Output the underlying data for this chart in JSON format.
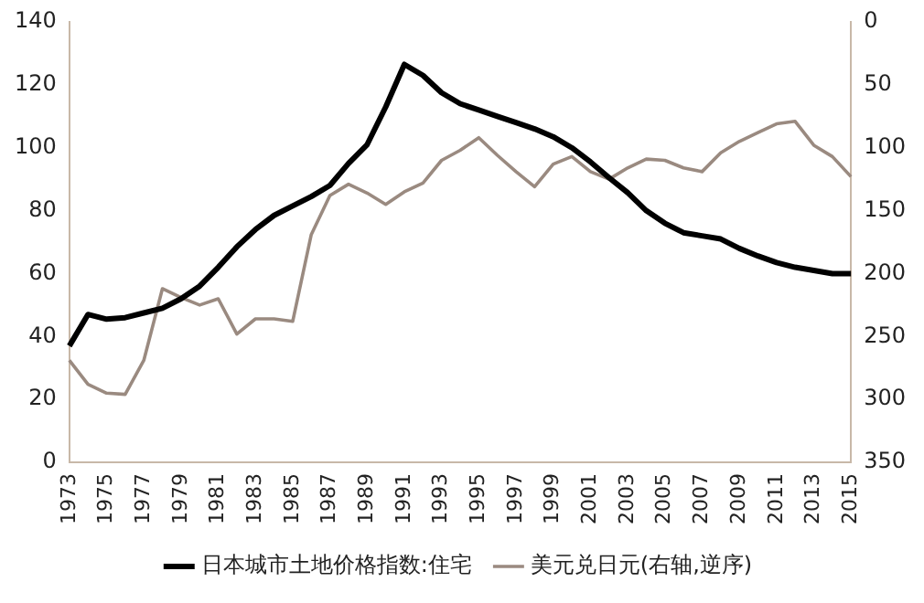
{
  "chart_data": {
    "type": "line",
    "categories": [
      "1973",
      null,
      "1975",
      null,
      "1977",
      null,
      "1979",
      null,
      "1981",
      null,
      "1983",
      null,
      "1985",
      null,
      "1987",
      null,
      "1989",
      null,
      "1991",
      null,
      "1993",
      null,
      "1995",
      null,
      "1997",
      null,
      "1999",
      null,
      "2001",
      null,
      "2003",
      null,
      "2005",
      null,
      "2007",
      null,
      "2009",
      null,
      "2011",
      null,
      "2013",
      null,
      "2015"
    ],
    "series": [
      {
        "name": "日本城市土地价格指数:住宅",
        "color": "#000000",
        "values": [
          37,
          47,
          45.5,
          46,
          47.5,
          49,
          52,
          56,
          62,
          68.5,
          74,
          78.5,
          81.5,
          84.5,
          88,
          95,
          101,
          113,
          126.5,
          123,
          117.5,
          114,
          112,
          110,
          108,
          106,
          103.5,
          100,
          95.5,
          90.5,
          85.7,
          80,
          76,
          73,
          72,
          71,
          68,
          65.6,
          63.5,
          62,
          61,
          60,
          60
        ]
      },
      {
        "name": "美元兑日元(右轴,逆序)",
        "color": "#9a8a80",
        "axis": "y2",
        "values": [
          269,
          288,
          295,
          296,
          269,
          212,
          219,
          225,
          220,
          248,
          236,
          236,
          238,
          169,
          138,
          129,
          136,
          145,
          135,
          128,
          110,
          102,
          92,
          106,
          119,
          131,
          113,
          107,
          119,
          125,
          116,
          109,
          110,
          116,
          119,
          104,
          95,
          88,
          81,
          79,
          98,
          107,
          123
        ]
      }
    ],
    "ylim": [
      0,
      140
    ],
    "yticks": [
      0,
      20,
      40,
      60,
      80,
      100,
      120,
      140
    ],
    "y2lim": [
      350,
      0
    ],
    "y2ticks": [
      0,
      50,
      100,
      150,
      200,
      250,
      300,
      350
    ],
    "grid": false,
    "legend": "bottom",
    "marker": "none",
    "line_style": "solid"
  }
}
